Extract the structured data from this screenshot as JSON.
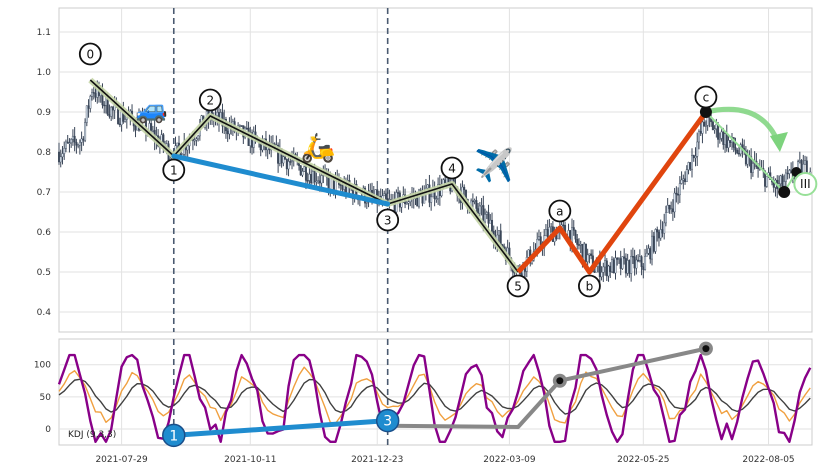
{
  "chart_data": [
    {
      "type": "candlestick",
      "y_ticks": [
        "1.1",
        "1.0",
        "0.9",
        "0.8",
        "0.7",
        "0.6",
        "0.5",
        "0.4"
      ],
      "ylim": [
        0.35,
        1.16
      ],
      "x_ticks": [
        "2021-07-29",
        "2021-10-11",
        "2021-12-23",
        "2022-03-09",
        "2022-05-25",
        "2022-08-05"
      ],
      "date_range": [
        "2021-06-23",
        "2022-08-30"
      ],
      "grid": true,
      "price_path": [
        {
          "date": "2021-06-23",
          "price": 0.8
        },
        {
          "date": "2021-07-06",
          "price": 0.83
        },
        {
          "date": "2021-07-12",
          "price": 0.96
        },
        {
          "date": "2021-07-24",
          "price": 0.9
        },
        {
          "date": "2021-08-10",
          "price": 0.87
        },
        {
          "date": "2021-08-28",
          "price": 0.79
        },
        {
          "date": "2021-09-18",
          "price": 0.89
        },
        {
          "date": "2021-10-28",
          "price": 0.79
        },
        {
          "date": "2021-11-22",
          "price": 0.73
        },
        {
          "date": "2021-12-29",
          "price": 0.67
        },
        {
          "date": "2022-01-18",
          "price": 0.69
        },
        {
          "date": "2022-02-04",
          "price": 0.72
        },
        {
          "date": "2022-02-26",
          "price": 0.62
        },
        {
          "date": "2022-03-14",
          "price": 0.5
        },
        {
          "date": "2022-04-01",
          "price": 0.6
        },
        {
          "date": "2022-04-12",
          "price": 0.6
        },
        {
          "date": "2022-04-27",
          "price": 0.51
        },
        {
          "date": "2022-05-25",
          "price": 0.52
        },
        {
          "date": "2022-06-16",
          "price": 0.72
        },
        {
          "date": "2022-06-30",
          "price": 0.88
        },
        {
          "date": "2022-07-21",
          "price": 0.79
        },
        {
          "date": "2022-08-10",
          "price": 0.71
        },
        {
          "date": "2022-08-24",
          "price": 0.76
        }
      ],
      "wave_points": [
        {
          "label": "0",
          "date": "2021-07-11",
          "price": 0.98
        },
        {
          "label": "1",
          "date": "2021-08-28",
          "price": 0.79
        },
        {
          "label": "2",
          "date": "2021-09-18",
          "price": 0.89
        },
        {
          "label": "3",
          "date": "2021-12-29",
          "price": 0.67
        },
        {
          "label": "4",
          "date": "2022-02-04",
          "price": 0.72
        },
        {
          "label": "5",
          "date": "2022-03-14",
          "price": 0.5
        },
        {
          "label": "a",
          "date": "2022-04-07",
          "price": 0.61
        },
        {
          "label": "b",
          "date": "2022-04-24",
          "price": 0.5
        },
        {
          "label": "c",
          "date": "2022-06-30",
          "price": 0.9
        }
      ],
      "blue_line": [
        {
          "date": "2021-08-28",
          "price": 0.79
        },
        {
          "date": "2021-12-29",
          "price": 0.67
        }
      ],
      "projection": [
        {
          "date": "2022-06-30",
          "price": 0.9
        },
        {
          "date": "2022-08-14",
          "price": 0.7
        },
        {
          "date": "2022-08-21",
          "price": 0.75
        }
      ],
      "projection_label": "III",
      "vertical_lines": [
        "2021-08-28",
        "2021-12-29"
      ]
    },
    {
      "type": "line",
      "legend": "KDJ (9,3,3)",
      "y_ticks": [
        "100",
        "50",
        "0"
      ],
      "ylim": [
        -25,
        140
      ],
      "series": [
        {
          "name": "K",
          "color": "#f0a040"
        },
        {
          "name": "D",
          "color": "#404040"
        },
        {
          "name": "J",
          "color": "#880088"
        }
      ],
      "kdj_markers": [
        {
          "label": "1",
          "date": "2021-08-28",
          "value": -10
        },
        {
          "label": "3",
          "date": "2021-12-29",
          "value": 13
        }
      ],
      "kdj_gray_line": [
        {
          "date": "2021-12-29",
          "value": 5
        },
        {
          "date": "2022-03-14",
          "value": 3
        },
        {
          "date": "2022-04-07",
          "value": 75
        },
        {
          "date": "2022-06-30",
          "value": 125
        }
      ]
    }
  ]
}
